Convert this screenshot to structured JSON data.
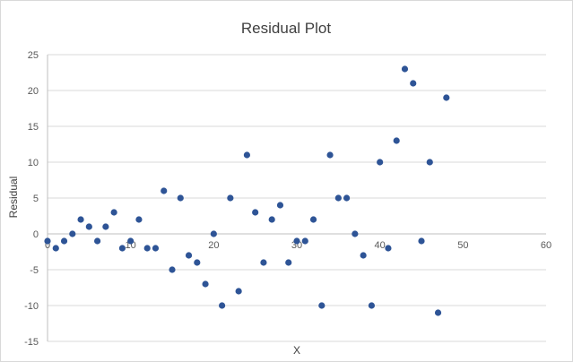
{
  "chart_data": {
    "type": "scatter",
    "title": "Residual Plot",
    "xlabel": "X",
    "ylabel": "Residual",
    "xlim": [
      0,
      60
    ],
    "ylim": [
      -15,
      25
    ],
    "x_ticks": [
      0,
      10,
      20,
      30,
      40,
      50,
      60
    ],
    "y_ticks": [
      25,
      20,
      15,
      10,
      5,
      0,
      -5,
      -10,
      -15
    ],
    "x_tick_labels": [
      "0",
      "10",
      "20",
      "30",
      "40",
      "50",
      "60"
    ],
    "y_tick_labels": [
      "25",
      "20",
      "15",
      "10",
      "5",
      "0",
      "-5",
      "-10",
      "-15"
    ],
    "grid": "horizontal",
    "legend": "none",
    "point_color": "#2e5496",
    "grid_color": "#d9d9d9",
    "points": [
      {
        "x": 0,
        "y": -1
      },
      {
        "x": 1,
        "y": -2
      },
      {
        "x": 2,
        "y": -1
      },
      {
        "x": 3,
        "y": 0
      },
      {
        "x": 4,
        "y": 2
      },
      {
        "x": 5,
        "y": 1
      },
      {
        "x": 6,
        "y": -1
      },
      {
        "x": 7,
        "y": 1
      },
      {
        "x": 8,
        "y": 3
      },
      {
        "x": 9,
        "y": -2
      },
      {
        "x": 10,
        "y": -1
      },
      {
        "x": 11,
        "y": 2
      },
      {
        "x": 12,
        "y": -2
      },
      {
        "x": 13,
        "y": -2
      },
      {
        "x": 14,
        "y": 6
      },
      {
        "x": 15,
        "y": -5
      },
      {
        "x": 16,
        "y": 5
      },
      {
        "x": 17,
        "y": -3
      },
      {
        "x": 18,
        "y": -4
      },
      {
        "x": 19,
        "y": -7
      },
      {
        "x": 20,
        "y": 0
      },
      {
        "x": 21,
        "y": -10
      },
      {
        "x": 22,
        "y": 5
      },
      {
        "x": 23,
        "y": -8
      },
      {
        "x": 24,
        "y": 11
      },
      {
        "x": 25,
        "y": 3
      },
      {
        "x": 26,
        "y": -4
      },
      {
        "x": 27,
        "y": 2
      },
      {
        "x": 28,
        "y": 4
      },
      {
        "x": 29,
        "y": -4
      },
      {
        "x": 30,
        "y": -1
      },
      {
        "x": 31,
        "y": -1
      },
      {
        "x": 32,
        "y": 2
      },
      {
        "x": 33,
        "y": -10
      },
      {
        "x": 34,
        "y": 11
      },
      {
        "x": 35,
        "y": 5
      },
      {
        "x": 36,
        "y": 5
      },
      {
        "x": 37,
        "y": 0
      },
      {
        "x": 38,
        "y": -3
      },
      {
        "x": 39,
        "y": -10
      },
      {
        "x": 40,
        "y": 10
      },
      {
        "x": 41,
        "y": -2
      },
      {
        "x": 42,
        "y": 13
      },
      {
        "x": 43,
        "y": 23
      },
      {
        "x": 44,
        "y": 21
      },
      {
        "x": 45,
        "y": -1
      },
      {
        "x": 46,
        "y": 10
      },
      {
        "x": 47,
        "y": -11
      },
      {
        "x": 48,
        "y": 19
      }
    ]
  }
}
